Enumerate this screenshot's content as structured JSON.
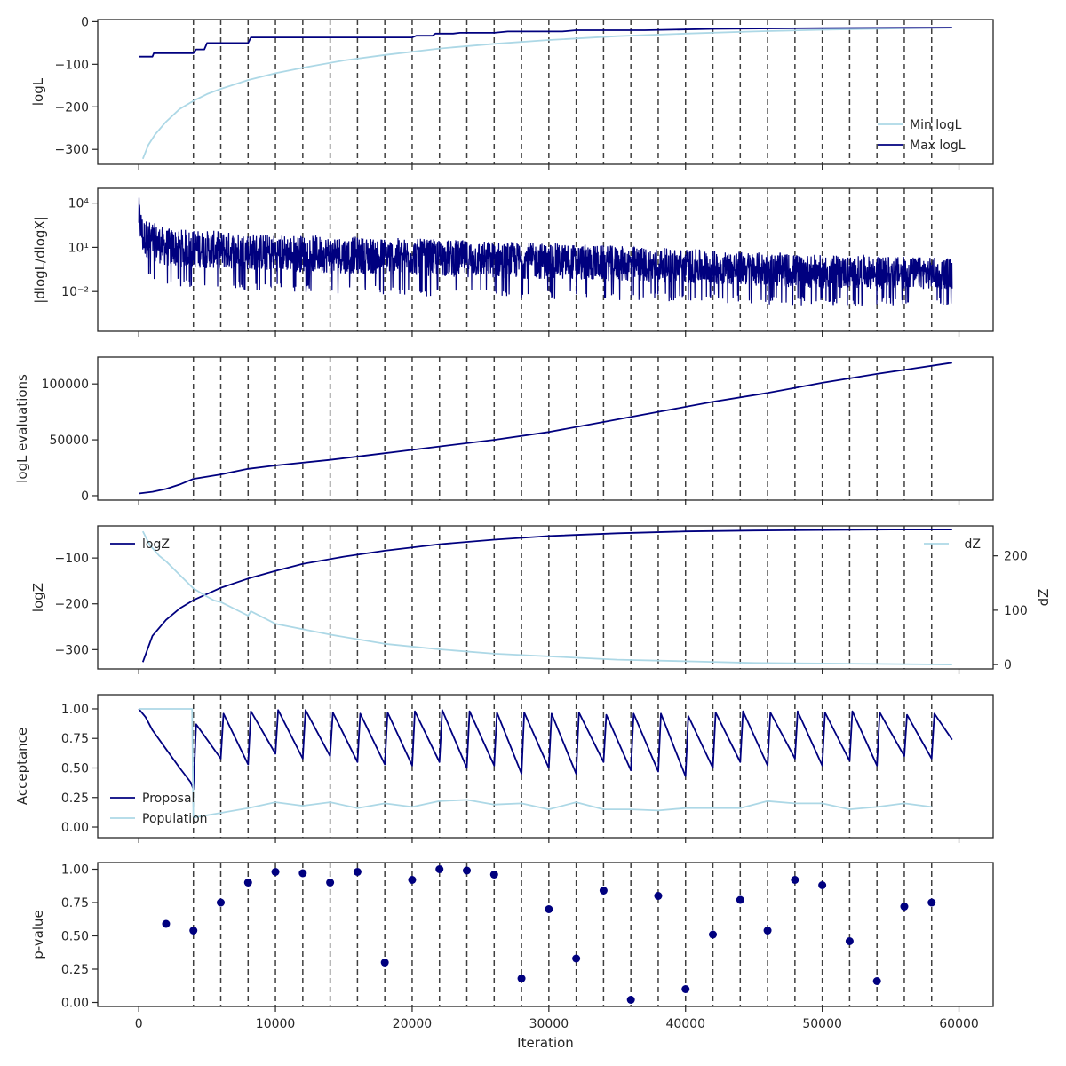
{
  "colors": {
    "dark": "#00007f",
    "light": "#add8e6",
    "axis": "#262626",
    "vline": "#404040"
  },
  "vlines": [
    4000,
    6000,
    8000,
    10000,
    12000,
    14000,
    16000,
    18000,
    20000,
    22000,
    24000,
    26000,
    28000,
    30000,
    32000,
    34000,
    36000,
    38000,
    40000,
    42000,
    44000,
    46000,
    48000,
    50000,
    52000,
    54000,
    56000,
    58000
  ],
  "chart_data": [
    {
      "type": "line",
      "ylabel": "logL",
      "xlim": [
        -3000,
        62500
      ],
      "ylim": [
        -335,
        5
      ],
      "yticks": [
        0,
        -100,
        -200,
        -300
      ],
      "yticklabels": [
        "0",
        "−100",
        "−200",
        "−300"
      ],
      "legend": "lower-right",
      "series": [
        {
          "name": "Min logL",
          "color": "light",
          "x": [
            300,
            700,
            1200,
            2000,
            3000,
            4000,
            5000,
            6000,
            8000,
            10000,
            12000,
            15000,
            18000,
            22000,
            26000,
            30000,
            35000,
            40000,
            45000,
            50000,
            55000,
            59500
          ],
          "y": [
            -322,
            -290,
            -265,
            -235,
            -205,
            -186,
            -170,
            -158,
            -137,
            -121,
            -108,
            -91,
            -78,
            -63,
            -52,
            -43,
            -34,
            -28,
            -23,
            -19,
            -16,
            -14
          ]
        },
        {
          "name": "Max logL",
          "color": "dark",
          "step": true,
          "x": [
            0,
            1000,
            1100,
            4000,
            4200,
            4800,
            5000,
            8000,
            8200,
            20000,
            20300,
            21500,
            21700,
            23000,
            23500,
            26000,
            27000,
            31000,
            32000,
            37000,
            42000,
            50000,
            59500
          ],
          "y": [
            -82,
            -82,
            -74,
            -74,
            -65,
            -65,
            -50,
            -50,
            -37,
            -37,
            -33,
            -33,
            -28,
            -28,
            -26,
            -26,
            -23,
            -23,
            -20,
            -20,
            -17,
            -15,
            -14
          ]
        }
      ]
    },
    {
      "type": "line",
      "ylabel": "|dlogL/dlogX|",
      "yscale": "log",
      "xlim": [
        -3000,
        62500
      ],
      "ylim": [
        2e-05,
        100000
      ],
      "yticks": [
        10000,
        10,
        0.01
      ],
      "yticklabels": [
        "10⁴",
        "10¹",
        "10⁻²"
      ],
      "series": [
        {
          "name": "",
          "color": "dark",
          "noisy": true,
          "x": [
            0,
            300,
            2000,
            10000,
            20000,
            30000,
            40000,
            50000,
            59500
          ],
          "upper": [
            30000,
            1000,
            200,
            80,
            40,
            20,
            8,
            3,
            2
          ],
          "lower": [
            3,
            0.1,
            0.02,
            0.01,
            0.005,
            0.003,
            0.002,
            0.001,
            0.001
          ]
        }
      ]
    },
    {
      "type": "line",
      "ylabel": "logL evaluations",
      "xlim": [
        -3000,
        62500
      ],
      "ylim": [
        -4000,
        124000
      ],
      "yticks": [
        0,
        50000,
        100000
      ],
      "yticklabels": [
        "0",
        "50000",
        "100000"
      ],
      "series": [
        {
          "name": "",
          "color": "dark",
          "x": [
            0,
            1000,
            2000,
            3000,
            4000,
            6000,
            8000,
            10000,
            14000,
            18000,
            22000,
            26000,
            30000,
            34000,
            38000,
            42000,
            46000,
            50000,
            54000,
            59500
          ],
          "y": [
            2000,
            3500,
            6000,
            10000,
            15000,
            19000,
            24000,
            27000,
            32000,
            38000,
            44000,
            50000,
            57000,
            66000,
            75000,
            84000,
            92000,
            101000,
            109000,
            119000
          ]
        }
      ]
    },
    {
      "type": "line",
      "ylabel": "logZ",
      "y2label": "dZ",
      "xlim": [
        -3000,
        62500
      ],
      "ylim": [
        -342,
        -30
      ],
      "yticks": [
        -100,
        -200,
        -300
      ],
      "yticklabels": [
        "−100",
        "−200",
        "−300"
      ],
      "y2lim": [
        -8,
        255
      ],
      "y2ticks": [
        0,
        100,
        200
      ],
      "y2ticklabels": [
        "0",
        "100",
        "200"
      ],
      "series": [
        {
          "name": "logZ",
          "color": "dark",
          "axis": "left",
          "legend": "upper-left",
          "x": [
            300,
            1000,
            2000,
            3000,
            4000,
            6000,
            8000,
            10000,
            12000,
            15000,
            18000,
            22000,
            26000,
            30000,
            35000,
            40000,
            45000,
            50000,
            55000,
            59500
          ],
          "y": [
            -327,
            -270,
            -235,
            -210,
            -192,
            -165,
            -145,
            -128,
            -113,
            -97,
            -84,
            -70,
            -60,
            -52,
            -46,
            -42,
            -40,
            -39,
            -38,
            -38
          ]
        },
        {
          "name": "dZ",
          "color": "light",
          "axis": "right",
          "legend": "upper-right",
          "x": [
            300,
            800,
            1500,
            2000,
            3000,
            4000,
            5000,
            5500,
            6000,
            8000,
            8200,
            10000,
            14000,
            18000,
            22000,
            26000,
            30000,
            35000,
            40000,
            45000,
            50000,
            55000,
            59500
          ],
          "y": [
            245,
            220,
            200,
            190,
            165,
            140,
            125,
            118,
            115,
            90,
            98,
            75,
            55,
            38,
            28,
            20,
            15,
            9,
            6,
            3,
            2,
            1,
            0
          ]
        }
      ]
    },
    {
      "type": "line",
      "ylabel": "Acceptance",
      "xlim": [
        -3000,
        62500
      ],
      "ylim": [
        -0.09,
        1.12
      ],
      "yticks": [
        1.0,
        0.75,
        0.5,
        0.25,
        0.0
      ],
      "yticklabels": [
        "1.00",
        "0.75",
        "0.50",
        "0.25",
        "0.00"
      ],
      "legend": "lower-left",
      "series": [
        {
          "name": "Proposal",
          "color": "dark",
          "sawtooth": true,
          "x": [
            0,
            500,
            1000,
            2000,
            3000,
            3800,
            4000,
            4200,
            6000,
            6200,
            8000,
            8200,
            10000,
            10200,
            12000,
            12200,
            14000,
            14200,
            16000,
            16200,
            18000,
            18200,
            20000,
            20200,
            22000,
            22200,
            24000,
            24200,
            26000,
            26200,
            28000,
            28200,
            30000,
            30200,
            32000,
            32200,
            34000,
            34200,
            36000,
            36200,
            38000,
            38200,
            40000,
            40200,
            42000,
            42200,
            44000,
            44200,
            46000,
            46200,
            48000,
            48200,
            50000,
            50200,
            52000,
            52200,
            54000,
            54200,
            56000,
            56200,
            58000,
            58200,
            59500
          ],
          "y": [
            1.0,
            0.93,
            0.82,
            0.66,
            0.5,
            0.38,
            0.32,
            0.87,
            0.58,
            0.96,
            0.53,
            0.98,
            0.62,
            0.99,
            0.58,
            0.99,
            0.6,
            0.97,
            0.55,
            0.96,
            0.53,
            0.97,
            0.52,
            0.98,
            0.55,
            0.99,
            0.5,
            0.98,
            0.52,
            0.97,
            0.45,
            0.97,
            0.5,
            0.96,
            0.45,
            0.97,
            0.55,
            0.95,
            0.48,
            0.96,
            0.47,
            0.96,
            0.43,
            0.94,
            0.5,
            0.97,
            0.55,
            0.98,
            0.52,
            0.97,
            0.58,
            0.98,
            0.52,
            0.97,
            0.56,
            0.98,
            0.52,
            0.97,
            0.6,
            0.95,
            0.58,
            0.96,
            0.74
          ]
        },
        {
          "name": "Population",
          "color": "light",
          "x": [
            0,
            3900,
            4000,
            6000,
            8000,
            10000,
            12000,
            14000,
            16000,
            18000,
            20000,
            22000,
            24000,
            26000,
            28000,
            30000,
            32000,
            34000,
            36000,
            38000,
            40000,
            42000,
            44000,
            46000,
            48000,
            50000,
            52000,
            54000,
            56000,
            58000
          ],
          "y": [
            1.0,
            1.0,
            0.08,
            0.12,
            0.16,
            0.21,
            0.18,
            0.21,
            0.16,
            0.2,
            0.17,
            0.22,
            0.23,
            0.19,
            0.2,
            0.15,
            0.21,
            0.15,
            0.15,
            0.14,
            0.16,
            0.16,
            0.16,
            0.22,
            0.2,
            0.2,
            0.15,
            0.17,
            0.2,
            0.17
          ]
        }
      ]
    },
    {
      "type": "scatter",
      "ylabel": "p-value",
      "xlabel": "Iteration",
      "xlim": [
        -3000,
        62500
      ],
      "ylim": [
        -0.03,
        1.05
      ],
      "yticks": [
        1.0,
        0.75,
        0.5,
        0.25,
        0.0
      ],
      "yticklabels": [
        "1.00",
        "0.75",
        "0.50",
        "0.25",
        "0.00"
      ],
      "xticks": [
        0,
        10000,
        20000,
        30000,
        40000,
        50000,
        60000
      ],
      "xticklabels": [
        "0",
        "10000",
        "20000",
        "30000",
        "40000",
        "50000",
        "60000"
      ],
      "series": [
        {
          "name": "",
          "color": "dark",
          "x": [
            2000,
            4000,
            6000,
            8000,
            10000,
            12000,
            14000,
            16000,
            18000,
            20000,
            22000,
            24000,
            26000,
            28000,
            30000,
            32000,
            34000,
            36000,
            38000,
            40000,
            42000,
            44000,
            46000,
            48000,
            50000,
            52000,
            54000,
            56000,
            58000
          ],
          "y": [
            0.59,
            0.54,
            0.75,
            0.9,
            0.98,
            0.97,
            0.9,
            0.98,
            0.3,
            0.92,
            1.0,
            0.99,
            0.96,
            0.18,
            0.7,
            0.33,
            0.84,
            0.02,
            0.8,
            0.1,
            0.51,
            0.77,
            0.54,
            0.92,
            0.88,
            0.46,
            0.16,
            0.72,
            0.75
          ]
        }
      ]
    }
  ]
}
